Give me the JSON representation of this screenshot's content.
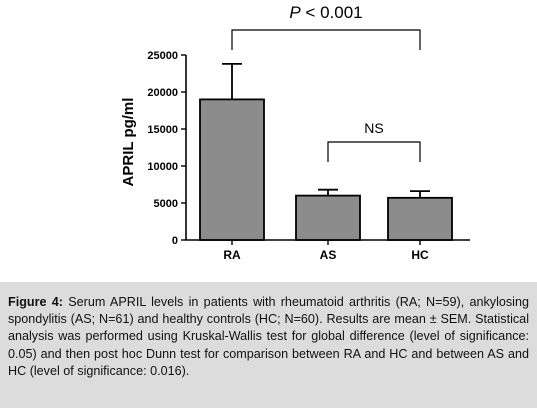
{
  "chart_data": {
    "type": "bar",
    "categories": [
      "RA",
      "AS",
      "HC"
    ],
    "values": [
      19000,
      6000,
      5700
    ],
    "error_sem": [
      4800,
      800,
      900
    ],
    "ylabel": "APRIL pg/ml",
    "ylim": [
      0,
      25000
    ],
    "yticks": [
      0,
      5000,
      10000,
      15000,
      20000,
      25000
    ],
    "ytick_labels": [
      "0",
      "5000",
      "10000",
      "15000",
      "20000",
      "25000"
    ],
    "bar_color": "#8c8c8c",
    "annotations": [
      {
        "from": "RA",
        "to": "HC",
        "label_prefix": "P",
        "label_rest": " < 0.001"
      },
      {
        "from": "AS",
        "to": "HC",
        "label": "NS"
      }
    ]
  },
  "caption": {
    "label": "Figure 4:",
    "text": " Serum APRIL levels in patients with rheumatoid arthritis (RA; N=59), ankylosing spondylitis (AS; N=61) and healthy controls (HC; N=60). Results are mean ± SEM. Statistical analysis was performed using Kruskal-Wallis test for global difference (level of significance: 0.05) and then post hoc Dunn test for comparison between RA and HC and between AS and HC (level of significance: 0.016)."
  }
}
